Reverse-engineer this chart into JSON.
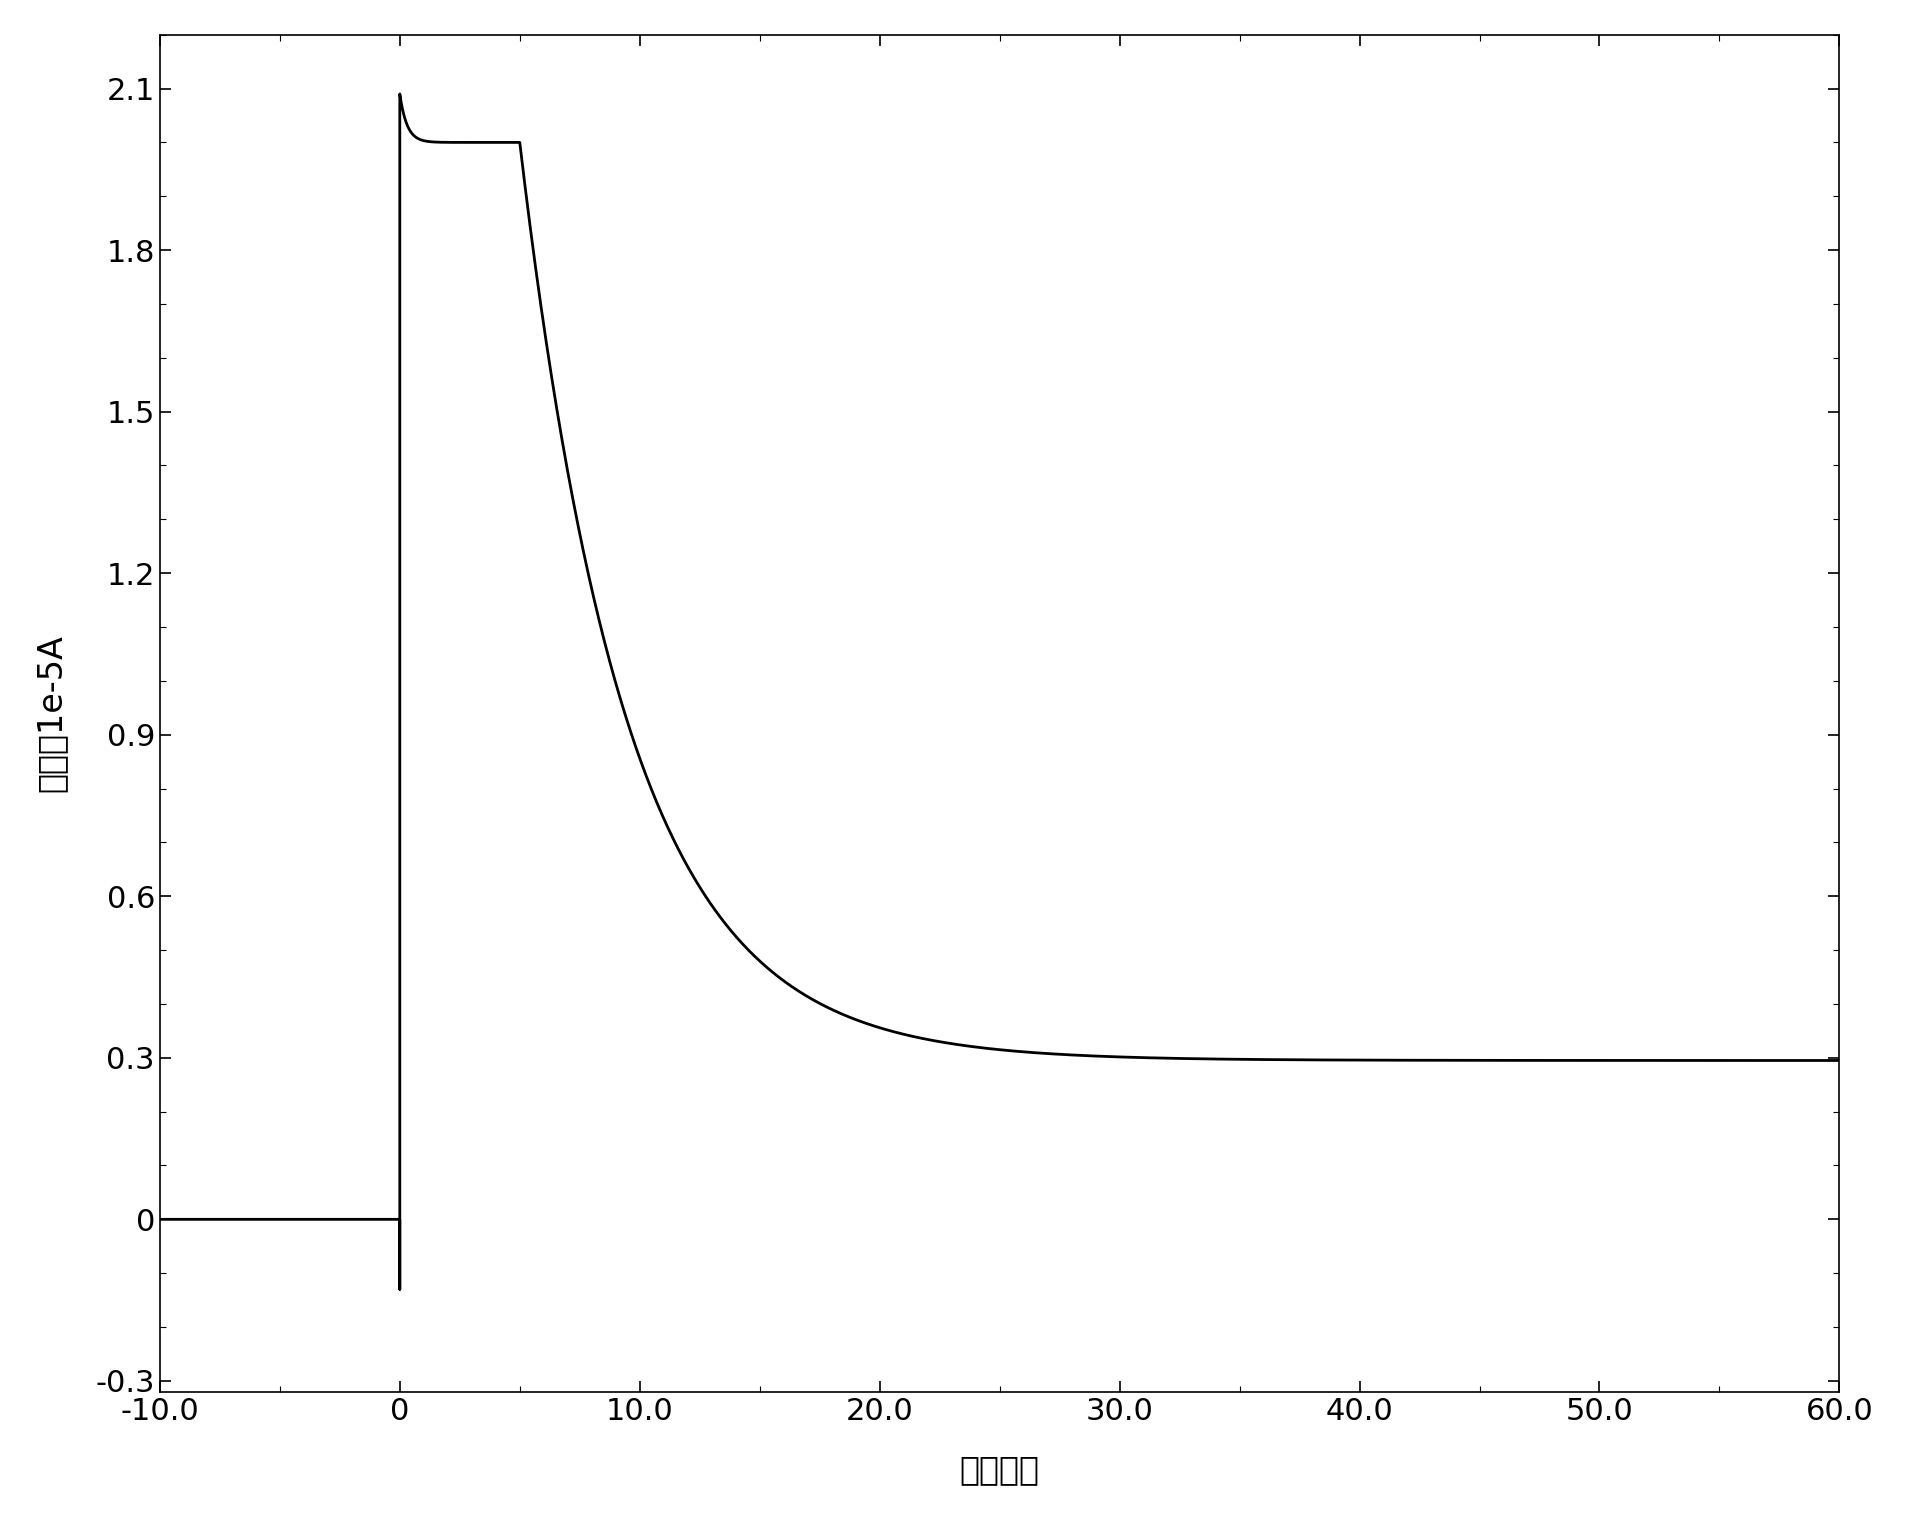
{
  "xlabel": "时间／秒",
  "ylabel": "电流／1e-5A",
  "xlim": [
    -10.0,
    60.0
  ],
  "ylim": [
    -0.32,
    2.2
  ],
  "xticks": [
    -10.0,
    0.0,
    10.0,
    20.0,
    30.0,
    40.0,
    50.0,
    60.0
  ],
  "yticks": [
    -0.3,
    0.0,
    0.3,
    0.6,
    0.9,
    1.2,
    1.5,
    1.8,
    2.1
  ],
  "xtick_labels": [
    "-10.0",
    "0",
    "10.0",
    "20.0",
    "30.0",
    "40.0",
    "50.0",
    "60.0"
  ],
  "ytick_labels": [
    "-0.3",
    "0",
    "0.3",
    "0.6",
    "0.9",
    "1.2",
    "1.5",
    "1.8",
    "2.1"
  ],
  "line_color": "#000000",
  "line_width": 2.0,
  "background_color": "#ffffff",
  "spike_peak": 2.09,
  "plateau_value": 2.0,
  "plateau_end": 5.0,
  "steady_state": 0.295,
  "decay_tau": 4.5,
  "neg_dip": -0.13,
  "font_size_ticks": 22,
  "font_size_labels": 24
}
